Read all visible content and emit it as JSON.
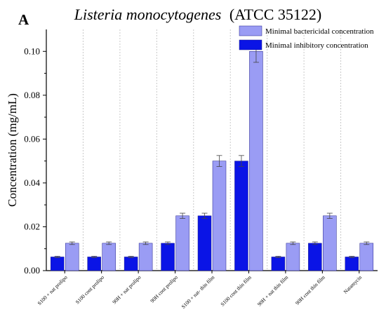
{
  "panel_label": "A",
  "title_species": "Listeria monocytogenes",
  "title_strain": "(ATCC 35122)",
  "colors": {
    "mic": "#0a14e6",
    "mbc": "#9a9cf4",
    "axis": "#000000",
    "error": "#444444",
    "separator": "#c8c8c8"
  },
  "chart_data": {
    "type": "bar",
    "title": "Listeria monocytogenes (ATCC 35122)",
    "xlabel": "",
    "ylabel": "Concentration (mg/mL)",
    "ylim": [
      0,
      0.11
    ],
    "y_ticks": [
      "0.00",
      "0.02",
      "0.04",
      "0.06",
      "0.08",
      "0.10"
    ],
    "y_tick_values": [
      0,
      0.02,
      0.04,
      0.06,
      0.08,
      0.1
    ],
    "grid": false,
    "legend_position": "top-right",
    "categories": [
      "S100 + nat prolipo",
      "S100 cont prolipo",
      "90H + nat prolipo",
      "90H cont prolipo",
      "S100 + nat- thin film",
      "S100 cont thin film",
      "90H + nat thin film",
      "90H cont thin film",
      "Natamycin"
    ],
    "series": [
      {
        "name": "Minimal inhibitory concentration",
        "values": [
          0.00625,
          0.00625,
          0.00625,
          0.0125,
          0.025,
          0.05,
          0.00625,
          0.0125,
          0.00625
        ],
        "errors": [
          0.0003,
          0.0003,
          0.0003,
          0.0006,
          0.0012,
          0.0025,
          0.0003,
          0.0006,
          0.0003
        ]
      },
      {
        "name": "Minimal bactericidal concentration",
        "values": [
          0.0125,
          0.0125,
          0.0125,
          0.025,
          0.05,
          0.1,
          0.0125,
          0.025,
          0.0125
        ],
        "errors": [
          0.0006,
          0.0006,
          0.0006,
          0.0012,
          0.0025,
          0.005,
          0.0006,
          0.0012,
          0.0006
        ]
      }
    ]
  }
}
